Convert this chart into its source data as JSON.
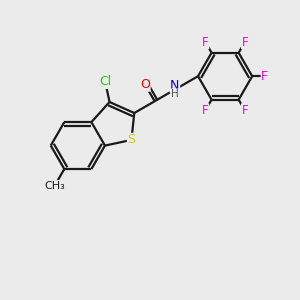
{
  "background_color": "#ebebeb",
  "bond_color": "#1a1a1a",
  "atom_colors": {
    "Cl": "#22cc00",
    "S": "#cccc00",
    "N": "#0000ee",
    "O": "#ee0000",
    "F": "#ee00ee",
    "C": "#1a1a1a"
  },
  "bond_width": 1.6,
  "font_size": 8.5,
  "figsize": [
    3.0,
    3.0
  ],
  "dpi": 100
}
